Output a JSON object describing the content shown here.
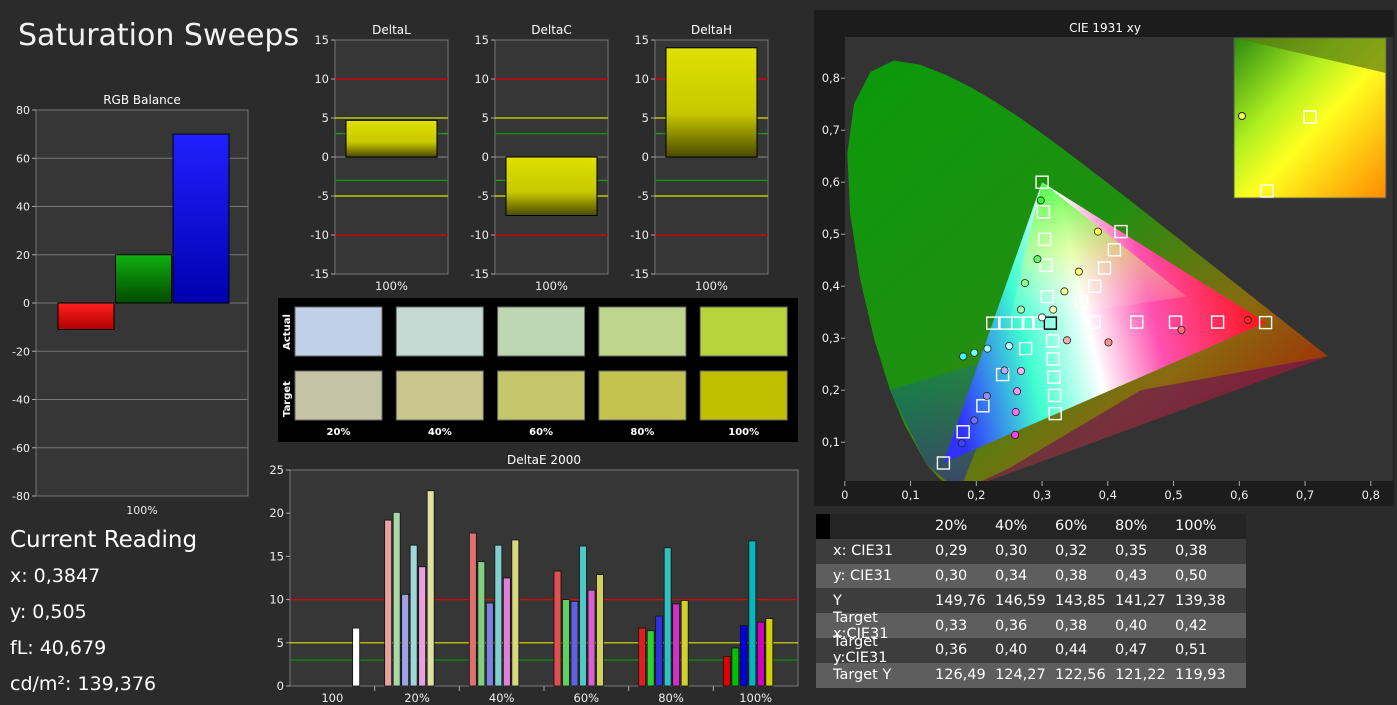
{
  "page": {
    "title": "Saturation Sweeps"
  },
  "reading": {
    "heading": "Current Reading",
    "x": "x: 0,3847",
    "y": "y: 0,505",
    "fl": "fL: 40,679",
    "cdm2": "cd/m²: 139,376"
  },
  "colors": {
    "red": "#ff0000",
    "green": "#00a000",
    "blue": "#0000ff",
    "yellowbar": "#d6d600",
    "bg": "#2b2b2b",
    "plotbg": "#363636"
  },
  "chart_data": [
    {
      "id": "rgb-balance",
      "type": "bar",
      "title": "RGB Balance",
      "categories": [
        "100%"
      ],
      "series": [
        {
          "values": [
            -11
          ],
          "color": "#ff0000"
        },
        {
          "values": [
            20
          ],
          "color": "#00a000"
        },
        {
          "values": [
            70
          ],
          "color": "#0000ff"
        }
      ],
      "ylim": [
        -80,
        80
      ],
      "yticks": [
        "80",
        "60",
        "40",
        "20",
        "0",
        "-20",
        "-40",
        "-60",
        "-80"
      ]
    },
    {
      "id": "deltaL",
      "type": "bar",
      "title": "DeltaL",
      "categories": [
        "100%"
      ],
      "values": [
        4.7
      ],
      "ylim": [
        -15,
        15
      ],
      "yticks": [
        "15",
        "10",
        "5",
        "0",
        "-5",
        "-10",
        "-15"
      ]
    },
    {
      "id": "deltaC",
      "type": "bar",
      "title": "DeltaC",
      "categories": [
        "100%"
      ],
      "values": [
        -7.5
      ],
      "ylim": [
        -15,
        15
      ],
      "yticks": [
        "15",
        "10",
        "5",
        "0",
        "-5",
        "-10",
        "-15"
      ]
    },
    {
      "id": "deltaH",
      "type": "bar",
      "title": "DeltaH",
      "categories": [
        "100%"
      ],
      "values": [
        14
      ],
      "ylim": [
        -15,
        15
      ],
      "yticks": [
        "15",
        "10",
        "5",
        "0",
        "-5",
        "-10",
        "-15"
      ]
    },
    {
      "id": "deltaE2000",
      "type": "bar",
      "title": "DeltaE 2000",
      "categories": [
        "100",
        "20%",
        "40%",
        "60%",
        "80%",
        "100%"
      ],
      "ylim": [
        0,
        25
      ],
      "yticks": [
        "25",
        "20",
        "15",
        "10",
        "5",
        "0"
      ],
      "groups": [
        {
          "category": "100",
          "bars": [
            {
              "value": 6.7,
              "color": "#ffffff"
            }
          ]
        },
        {
          "category": "20%",
          "bars": [
            {
              "value": 19.2,
              "color": "#e8a0a0"
            },
            {
              "value": 20.1,
              "color": "#a8d8a8"
            },
            {
              "value": 10.6,
              "color": "#a0a0e8"
            },
            {
              "value": 16.3,
              "color": "#a0d8d8"
            },
            {
              "value": 13.8,
              "color": "#e8a0e0"
            },
            {
              "value": 22.6,
              "color": "#e0e0a0"
            }
          ]
        },
        {
          "category": "40%",
          "bars": [
            {
              "value": 17.7,
              "color": "#e07070"
            },
            {
              "value": 14.4,
              "color": "#80d080"
            },
            {
              "value": 9.6,
              "color": "#8080e0"
            },
            {
              "value": 16.3,
              "color": "#80d0d0"
            },
            {
              "value": 12.5,
              "color": "#e080d8"
            },
            {
              "value": 16.9,
              "color": "#d8d880"
            }
          ]
        },
        {
          "category": "60%",
          "bars": [
            {
              "value": 13.3,
              "color": "#e05050"
            },
            {
              "value": 10.0,
              "color": "#60d060"
            },
            {
              "value": 9.8,
              "color": "#6060e0"
            },
            {
              "value": 16.2,
              "color": "#50c8c8"
            },
            {
              "value": 11.1,
              "color": "#d860d0"
            },
            {
              "value": 12.9,
              "color": "#d0d060"
            }
          ]
        },
        {
          "category": "80%",
          "bars": [
            {
              "value": 6.7,
              "color": "#e02020"
            },
            {
              "value": 6.4,
              "color": "#30d030"
            },
            {
              "value": 8.1,
              "color": "#3030e0"
            },
            {
              "value": 16.0,
              "color": "#30c0c0"
            },
            {
              "value": 9.5,
              "color": "#d030c8"
            },
            {
              "value": 9.9,
              "color": "#d0d030"
            }
          ]
        },
        {
          "category": "100%",
          "bars": [
            {
              "value": 3.4,
              "color": "#e00000"
            },
            {
              "value": 4.4,
              "color": "#00c000"
            },
            {
              "value": 7.0,
              "color": "#0000e0"
            },
            {
              "value": 16.8,
              "color": "#00b8c0"
            },
            {
              "value": 7.4,
              "color": "#d000c0"
            },
            {
              "value": 7.8,
              "color": "#d0d000"
            }
          ]
        }
      ]
    },
    {
      "id": "cie1931",
      "type": "scatter",
      "title": "CIE 1931 xy",
      "xlim": [
        0,
        0.8
      ],
      "ylim": [
        0,
        0.85
      ],
      "xticks": [
        "0",
        "0,1",
        "0,2",
        "0,3",
        "0,4",
        "0,5",
        "0,6",
        "0,7",
        "0,8"
      ],
      "yticks": [
        "0,8",
        "0,7",
        "0,6",
        "0,5",
        "0,4",
        "0,3",
        "0,2",
        "0,1"
      ],
      "gamut": {
        "red": [
          0.64,
          0.33
        ],
        "green": [
          0.3,
          0.6
        ],
        "blue": [
          0.15,
          0.06
        ]
      },
      "white": [
        0.3127,
        0.329
      ],
      "targets": [
        [
          0.64,
          0.33
        ],
        [
          0.567,
          0.331
        ],
        [
          0.503,
          0.331
        ],
        [
          0.444,
          0.331
        ],
        [
          0.379,
          0.331
        ],
        [
          0.3,
          0.6
        ],
        [
          0.302,
          0.543
        ],
        [
          0.304,
          0.49
        ],
        [
          0.306,
          0.44
        ],
        [
          0.308,
          0.38
        ],
        [
          0.15,
          0.06
        ],
        [
          0.18,
          0.12
        ],
        [
          0.21,
          0.17
        ],
        [
          0.24,
          0.23
        ],
        [
          0.275,
          0.28
        ],
        [
          0.225,
          0.329
        ],
        [
          0.245,
          0.329
        ],
        [
          0.263,
          0.329
        ],
        [
          0.279,
          0.329
        ],
        [
          0.295,
          0.329
        ],
        [
          0.42,
          0.505
        ],
        [
          0.41,
          0.47
        ],
        [
          0.395,
          0.435
        ],
        [
          0.38,
          0.4
        ],
        [
          0.36,
          0.37
        ],
        [
          0.32,
          0.155
        ],
        [
          0.319,
          0.19
        ],
        [
          0.318,
          0.225
        ],
        [
          0.317,
          0.26
        ],
        [
          0.316,
          0.295
        ]
      ],
      "measured": [
        [
          0.613,
          0.335,
          "#ff2020"
        ],
        [
          0.512,
          0.316,
          "#ff7070"
        ],
        [
          0.401,
          0.292,
          "#ff9090"
        ],
        [
          0.338,
          0.296,
          "#ffb0b0"
        ],
        [
          0.298,
          0.565,
          "#30ff30"
        ],
        [
          0.293,
          0.452,
          "#60ff60"
        ],
        [
          0.274,
          0.406,
          "#90ff90"
        ],
        [
          0.268,
          0.355,
          "#b0ffb0"
        ],
        [
          0.178,
          0.098,
          "#4040ff"
        ],
        [
          0.197,
          0.142,
          "#7070ff"
        ],
        [
          0.216,
          0.189,
          "#9090ff"
        ],
        [
          0.243,
          0.238,
          "#b0b0ff"
        ],
        [
          0.18,
          0.265,
          "#40ffff"
        ],
        [
          0.197,
          0.272,
          "#70ffff"
        ],
        [
          0.217,
          0.28,
          "#a0ffff"
        ],
        [
          0.25,
          0.285,
          "#c0ffff"
        ],
        [
          0.259,
          0.114,
          "#ff40ff"
        ],
        [
          0.26,
          0.158,
          "#ff70ff"
        ],
        [
          0.262,
          0.198,
          "#ff90ff"
        ],
        [
          0.268,
          0.237,
          "#ffb0ff"
        ],
        [
          0.385,
          0.505,
          "#ffff40"
        ],
        [
          0.356,
          0.428,
          "#ffff70"
        ],
        [
          0.334,
          0.39,
          "#ffff90"
        ],
        [
          0.317,
          0.355,
          "#ffffb0"
        ],
        [
          0.3,
          0.34,
          "#ffffff"
        ]
      ]
    }
  ],
  "swatches": {
    "row_labels": [
      "Actual",
      "Target"
    ],
    "columns": [
      "20%",
      "40%",
      "60%",
      "80%",
      "100%"
    ],
    "actual": [
      "#c0d0e6",
      "#c3d9d2",
      "#bdd7b2",
      "#bdd68c",
      "#b7d43a"
    ],
    "target": [
      "#c4c3a6",
      "#c8c68a",
      "#c6c66b",
      "#c3c34f",
      "#c1c000"
    ]
  },
  "table": {
    "header": [
      "",
      "20%",
      "40%",
      "60%",
      "80%",
      "100%"
    ],
    "rows": [
      [
        "x: CIE31",
        "0,29",
        "0,30",
        "0,32",
        "0,35",
        "0,38"
      ],
      [
        "y: CIE31",
        "0,30",
        "0,34",
        "0,38",
        "0,43",
        "0,50"
      ],
      [
        "Y",
        "149,76",
        "146,59",
        "143,85",
        "141,27",
        "139,38"
      ],
      [
        "Target x:CIE31",
        "0,33",
        "0,36",
        "0,38",
        "0,40",
        "0,42"
      ],
      [
        "Target y:CIE31",
        "0,36",
        "0,40",
        "0,44",
        "0,47",
        "0,51"
      ],
      [
        "Target Y",
        "126,49",
        "124,27",
        "122,56",
        "121,22",
        "119,93"
      ]
    ]
  }
}
